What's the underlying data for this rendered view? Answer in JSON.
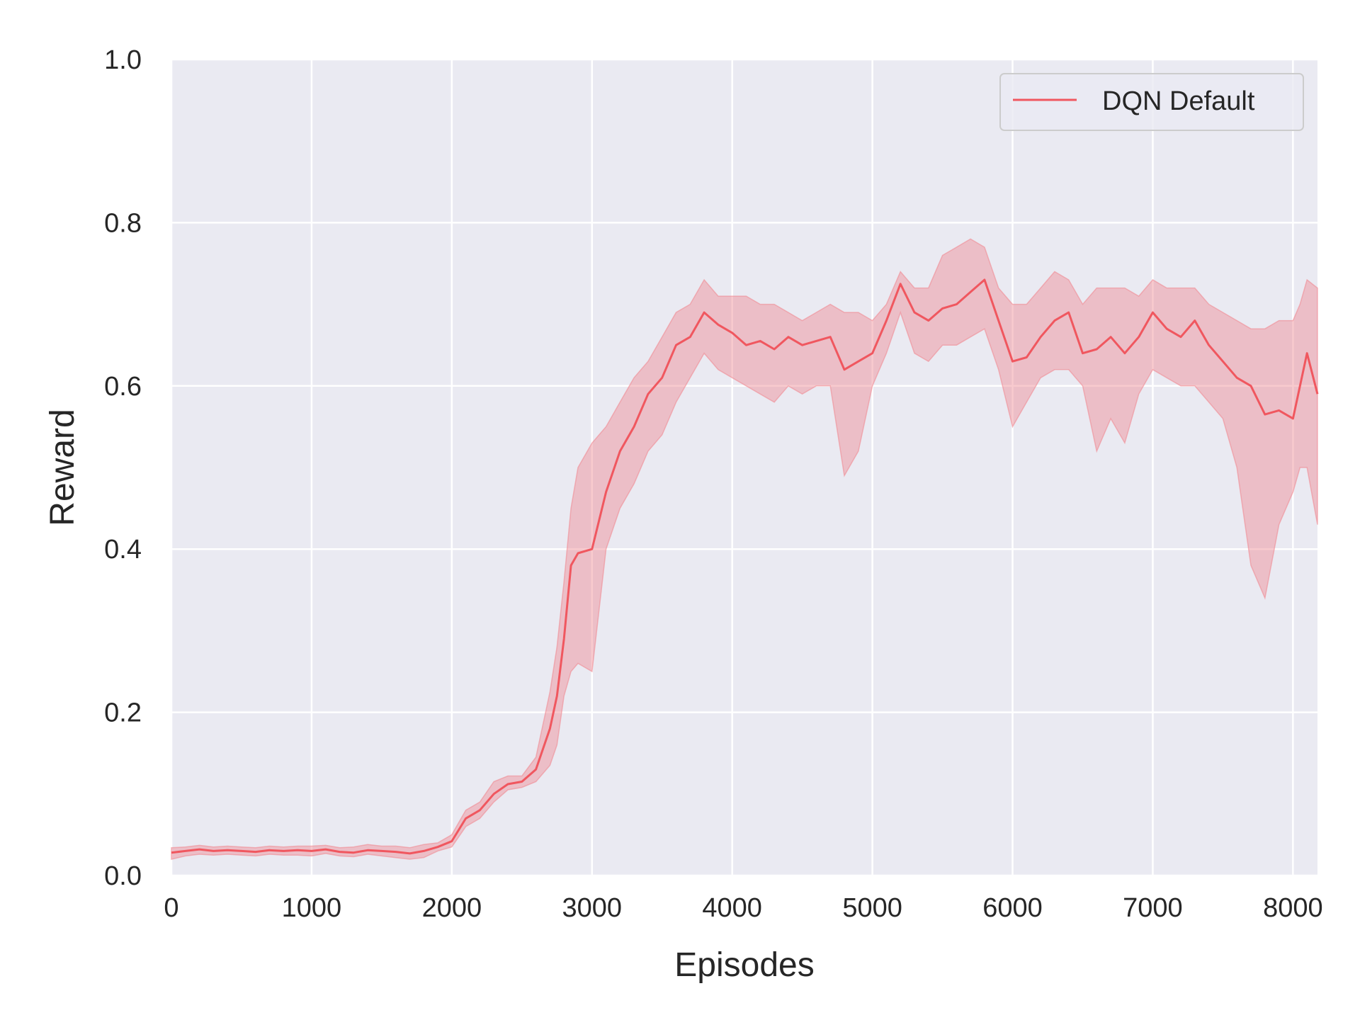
{
  "chart_data": {
    "type": "line",
    "title": "",
    "xlabel": "Episodes",
    "ylabel": "Reward",
    "xlim": [
      0,
      8175
    ],
    "ylim": [
      0.0,
      1.0
    ],
    "xticks": [
      0,
      1000,
      2000,
      3000,
      4000,
      5000,
      6000,
      7000,
      8000
    ],
    "xtick_labels": [
      "0",
      "1000",
      "2000",
      "3000",
      "4000",
      "5000",
      "6000",
      "7000",
      "8000"
    ],
    "yticks": [
      0.0,
      0.2,
      0.4,
      0.6,
      0.8,
      1.0
    ],
    "ytick_labels": [
      "0.0",
      "0.2",
      "0.4",
      "0.6",
      "0.8",
      "1.0"
    ],
    "grid": true,
    "legend_position": "top-right",
    "background_color": "#eaeaf2",
    "grid_color": "#ffffff",
    "series": [
      {
        "name": "DQN Default",
        "color": "#f0575f",
        "band_color": "#f08a92",
        "x": [
          0,
          100,
          200,
          300,
          400,
          500,
          600,
          700,
          800,
          900,
          1000,
          1100,
          1200,
          1300,
          1400,
          1500,
          1600,
          1700,
          1800,
          1900,
          2000,
          2100,
          2200,
          2300,
          2400,
          2500,
          2600,
          2700,
          2750,
          2800,
          2850,
          2900,
          3000,
          3100,
          3200,
          3300,
          3400,
          3500,
          3600,
          3700,
          3800,
          3900,
          4000,
          4100,
          4200,
          4300,
          4400,
          4500,
          4600,
          4700,
          4800,
          4900,
          5000,
          5100,
          5200,
          5300,
          5400,
          5500,
          5600,
          5700,
          5800,
          5900,
          6000,
          6100,
          6200,
          6300,
          6400,
          6500,
          6600,
          6700,
          6800,
          6900,
          7000,
          7100,
          7200,
          7300,
          7400,
          7500,
          7600,
          7700,
          7800,
          7900,
          8000,
          8050,
          8100,
          8175
        ],
        "y": [
          0.028,
          0.03,
          0.032,
          0.03,
          0.031,
          0.03,
          0.029,
          0.031,
          0.03,
          0.031,
          0.03,
          0.032,
          0.029,
          0.028,
          0.031,
          0.03,
          0.029,
          0.027,
          0.03,
          0.035,
          0.042,
          0.07,
          0.08,
          0.1,
          0.112,
          0.115,
          0.13,
          0.18,
          0.22,
          0.29,
          0.38,
          0.395,
          0.4,
          0.47,
          0.52,
          0.55,
          0.59,
          0.61,
          0.65,
          0.66,
          0.69,
          0.675,
          0.665,
          0.65,
          0.655,
          0.645,
          0.66,
          0.65,
          0.655,
          0.66,
          0.62,
          0.63,
          0.64,
          0.68,
          0.725,
          0.69,
          0.68,
          0.695,
          0.7,
          0.715,
          0.73,
          0.68,
          0.63,
          0.635,
          0.66,
          0.68,
          0.69,
          0.64,
          0.645,
          0.66,
          0.64,
          0.66,
          0.69,
          0.67,
          0.66,
          0.68,
          0.65,
          0.63,
          0.61,
          0.6,
          0.565,
          0.57,
          0.56,
          0.6,
          0.64,
          0.59
        ],
        "lower": [
          0.02,
          0.024,
          0.026,
          0.025,
          0.026,
          0.025,
          0.024,
          0.026,
          0.025,
          0.025,
          0.024,
          0.027,
          0.024,
          0.023,
          0.026,
          0.024,
          0.022,
          0.02,
          0.022,
          0.03,
          0.035,
          0.06,
          0.07,
          0.09,
          0.105,
          0.108,
          0.115,
          0.135,
          0.16,
          0.22,
          0.25,
          0.26,
          0.25,
          0.4,
          0.45,
          0.48,
          0.52,
          0.54,
          0.58,
          0.61,
          0.64,
          0.62,
          0.61,
          0.6,
          0.59,
          0.58,
          0.6,
          0.59,
          0.6,
          0.6,
          0.49,
          0.52,
          0.6,
          0.64,
          0.69,
          0.64,
          0.63,
          0.65,
          0.65,
          0.66,
          0.67,
          0.62,
          0.55,
          0.58,
          0.61,
          0.62,
          0.62,
          0.6,
          0.52,
          0.56,
          0.53,
          0.59,
          0.62,
          0.61,
          0.6,
          0.6,
          0.58,
          0.56,
          0.5,
          0.38,
          0.34,
          0.43,
          0.47,
          0.5,
          0.5,
          0.43
        ],
        "upper": [
          0.034,
          0.035,
          0.037,
          0.035,
          0.036,
          0.035,
          0.034,
          0.036,
          0.035,
          0.036,
          0.036,
          0.037,
          0.034,
          0.035,
          0.038,
          0.036,
          0.036,
          0.034,
          0.038,
          0.04,
          0.05,
          0.08,
          0.09,
          0.115,
          0.122,
          0.122,
          0.145,
          0.225,
          0.28,
          0.36,
          0.45,
          0.5,
          0.53,
          0.55,
          0.58,
          0.61,
          0.63,
          0.66,
          0.69,
          0.7,
          0.73,
          0.71,
          0.71,
          0.71,
          0.7,
          0.7,
          0.69,
          0.68,
          0.69,
          0.7,
          0.69,
          0.69,
          0.68,
          0.7,
          0.74,
          0.72,
          0.72,
          0.76,
          0.77,
          0.78,
          0.77,
          0.72,
          0.7,
          0.7,
          0.72,
          0.74,
          0.73,
          0.7,
          0.72,
          0.72,
          0.72,
          0.71,
          0.73,
          0.72,
          0.72,
          0.72,
          0.7,
          0.69,
          0.68,
          0.67,
          0.67,
          0.68,
          0.68,
          0.7,
          0.73,
          0.72
        ]
      }
    ]
  }
}
